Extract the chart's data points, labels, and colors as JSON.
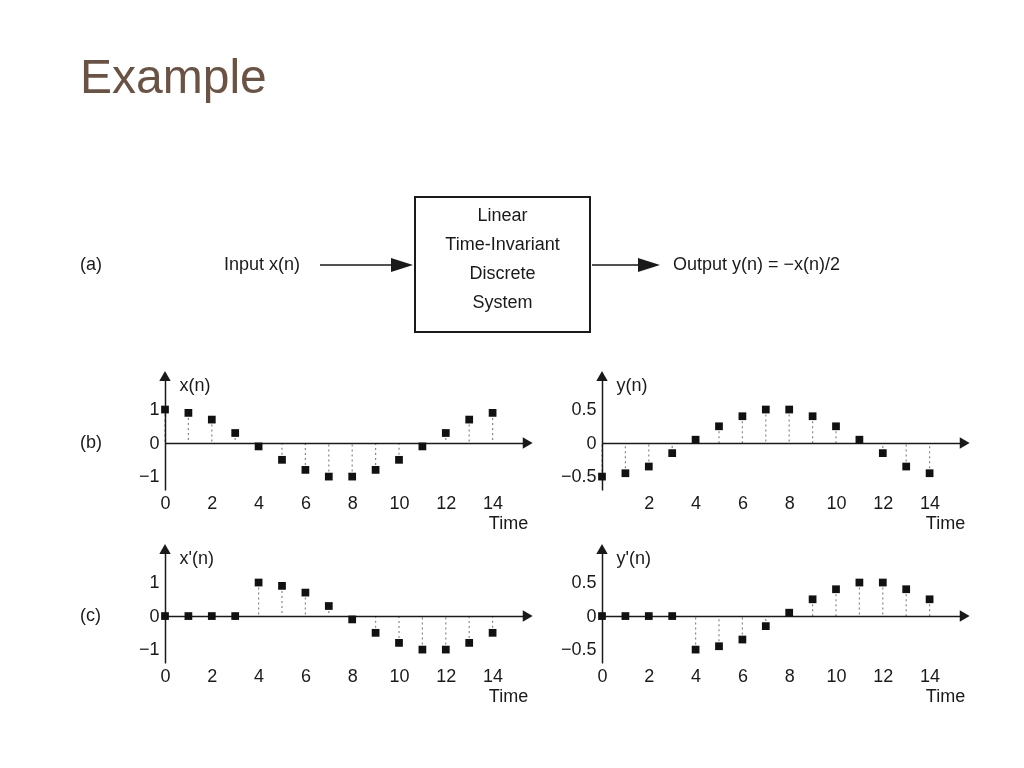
{
  "chart_data": [
    {
      "type": "other",
      "title": "Example",
      "annotations": [
        "(a)",
        "Input x(n)",
        "Linear Time-Invariant Discrete System",
        "Output y(n) = −x(n)/2"
      ]
    },
    {
      "type": "lollipop",
      "ylabel": "x(n)",
      "xlabel": "Time",
      "annotations": [
        "(b)"
      ],
      "x": [
        0,
        1,
        2,
        3,
        4,
        5,
        6,
        7,
        8,
        9,
        10,
        11,
        12,
        13,
        14
      ],
      "values": [
        1,
        0.9,
        0.7,
        0.3,
        -0.1,
        -0.5,
        -0.8,
        -1,
        -1,
        -0.8,
        -0.5,
        -0.1,
        0.3,
        0.7,
        0.9
      ],
      "color": "#111111",
      "xlim": [
        0,
        15.5
      ],
      "ylim": [
        -1.4,
        2.0
      ],
      "xticks": [
        0,
        2,
        4,
        6,
        8,
        10,
        12,
        14
      ],
      "yticks": [
        -1,
        0,
        1
      ],
      "marker": "square",
      "line_style": "dotted"
    },
    {
      "type": "lollipop",
      "ylabel": "y(n)",
      "xlabel": "Time",
      "x": [
        0,
        1,
        2,
        3,
        4,
        5,
        6,
        7,
        8,
        9,
        10,
        11,
        12,
        13,
        14
      ],
      "values": [
        -0.5,
        -0.45,
        -0.35,
        -0.15,
        0.05,
        0.25,
        0.4,
        0.5,
        0.5,
        0.4,
        0.25,
        0.05,
        -0.15,
        -0.35,
        -0.45
      ],
      "color": "#111111",
      "xlim": [
        0,
        15.5
      ],
      "ylim": [
        -0.7,
        1.0
      ],
      "xticks": [
        2,
        4,
        6,
        8,
        10,
        12,
        14
      ],
      "yticks": [
        -0.5,
        0,
        0.5
      ],
      "marker": "square",
      "line_style": "dotted"
    },
    {
      "type": "lollipop",
      "ylabel": "x'(n)",
      "xlabel": "Time",
      "annotations": [
        "(c)"
      ],
      "x": [
        0,
        1,
        2,
        3,
        4,
        5,
        6,
        7,
        8,
        9,
        10,
        11,
        12,
        13,
        14
      ],
      "values": [
        0,
        0,
        0,
        0,
        1,
        0.9,
        0.7,
        0.3,
        -0.1,
        -0.5,
        -0.8,
        -1,
        -1,
        -0.8,
        -0.5
      ],
      "color": "#111111",
      "xlim": [
        0,
        15.5
      ],
      "ylim": [
        -1.4,
        2.0
      ],
      "xticks": [
        0,
        2,
        4,
        6,
        8,
        10,
        12,
        14
      ],
      "yticks": [
        -1,
        0,
        1
      ],
      "marker": "square",
      "line_style": "dotted"
    },
    {
      "type": "lollipop",
      "ylabel": "y'(n)",
      "xlabel": "Time",
      "x": [
        0,
        1,
        2,
        3,
        4,
        5,
        6,
        7,
        8,
        9,
        10,
        11,
        12,
        13,
        14
      ],
      "values": [
        0,
        0,
        0,
        0,
        -0.5,
        -0.45,
        -0.35,
        -0.15,
        0.05,
        0.25,
        0.4,
        0.5,
        0.5,
        0.4,
        0.25
      ],
      "color": "#111111",
      "xlim": [
        0,
        15.5
      ],
      "ylim": [
        -0.7,
        1.0
      ],
      "xticks": [
        0,
        2,
        4,
        6,
        8,
        10,
        12,
        14
      ],
      "yticks": [
        -0.5,
        0,
        0.5
      ],
      "marker": "square",
      "line_style": "dotted"
    }
  ]
}
